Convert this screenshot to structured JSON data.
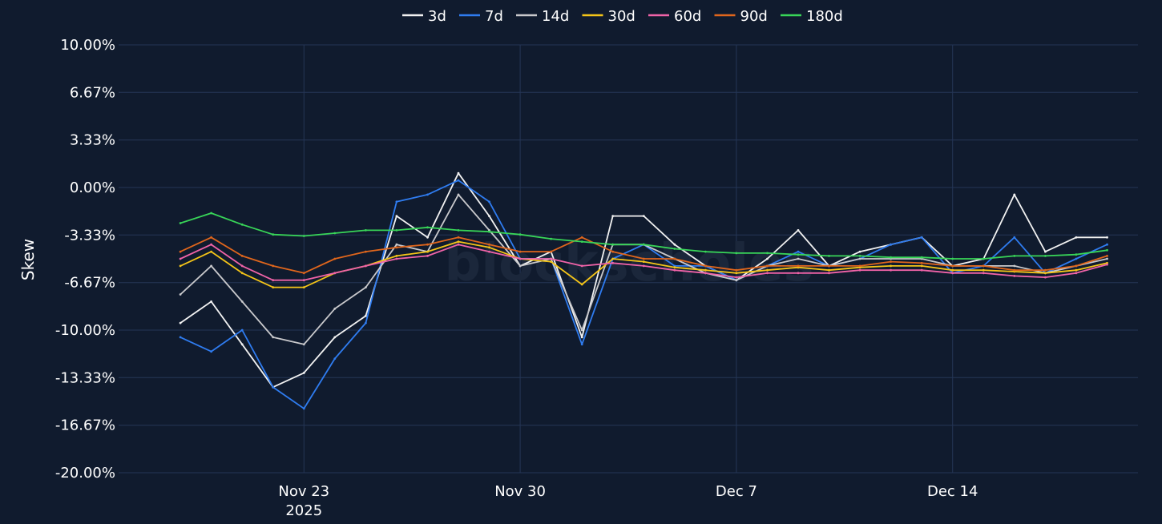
{
  "chart_data": {
    "type": "line",
    "ylabel": "Skew",
    "xlabel": "",
    "ylim": [
      -20,
      10
    ],
    "y_tick_labels": [
      "10.00%",
      "6.67%",
      "3.33%",
      "0.00%",
      "-3.33%",
      "-6.67%",
      "-10.00%",
      "-13.33%",
      "-16.67%",
      "-20.00%"
    ],
    "y_ticks": [
      10,
      6.67,
      3.33,
      0,
      -3.33,
      -6.67,
      -10,
      -13.33,
      -16.67,
      -20
    ],
    "xlim": [
      "2025-11-17",
      "2025-12-20"
    ],
    "x_ticks": [
      {
        "date": "2025-11-23",
        "label": "Nov 23",
        "sublabel": "2025"
      },
      {
        "date": "2025-11-30",
        "label": "Nov 30",
        "sublabel": ""
      },
      {
        "date": "2025-12-07",
        "label": "Dec 7",
        "sublabel": ""
      },
      {
        "date": "2025-12-14",
        "label": "Dec 14",
        "sublabel": ""
      }
    ],
    "grid": true,
    "legend_position": "top-center",
    "watermark": "blockscholes",
    "x": [
      "2025-11-19",
      "2025-11-20",
      "2025-11-21",
      "2025-11-22",
      "2025-11-23",
      "2025-11-24",
      "2025-11-25",
      "2025-11-26",
      "2025-11-27",
      "2025-11-28",
      "2025-11-29",
      "2025-11-30",
      "2025-12-01",
      "2025-12-02",
      "2025-12-03",
      "2025-12-04",
      "2025-12-05",
      "2025-12-06",
      "2025-12-07",
      "2025-12-08",
      "2025-12-09",
      "2025-12-10",
      "2025-12-11",
      "2025-12-12",
      "2025-12-13",
      "2025-12-14",
      "2025-12-15",
      "2025-12-16",
      "2025-12-17",
      "2025-12-18",
      "2025-12-19"
    ],
    "series": [
      {
        "name": "3d",
        "color": "#f2f2f2",
        "values": [
          -9.5,
          -8.0,
          -11.0,
          -14.0,
          -13.0,
          -10.5,
          -9.0,
          -2.0,
          -3.5,
          1.0,
          -2.0,
          -5.5,
          -4.5,
          -10.5,
          -2.0,
          -2.0,
          -4.0,
          -5.5,
          -6.5,
          -5.0,
          -3.0,
          -5.5,
          -4.5,
          -4.0,
          -3.5,
          -5.5,
          -5.0,
          -0.5,
          -4.5,
          -3.5,
          -3.5
        ]
      },
      {
        "name": "7d",
        "color": "#2f7cf0",
        "values": [
          -10.5,
          -11.5,
          -10.0,
          -14.0,
          -15.5,
          -12.0,
          -9.5,
          -1.0,
          -0.5,
          0.5,
          -1.0,
          -5.0,
          -5.0,
          -11.0,
          -5.0,
          -4.0,
          -5.5,
          -5.5,
          -6.5,
          -5.5,
          -4.5,
          -5.5,
          -5.0,
          -4.0,
          -3.5,
          -6.0,
          -5.5,
          -3.5,
          -6.0,
          -5.0,
          -4.0
        ]
      },
      {
        "name": "14d",
        "color": "#c9c9cc",
        "values": [
          -7.5,
          -5.5,
          -8.0,
          -10.5,
          -11.0,
          -8.5,
          -7.0,
          -4.0,
          -4.5,
          -0.5,
          -3.0,
          -5.5,
          -5.0,
          -10.0,
          -4.0,
          -4.0,
          -5.0,
          -6.0,
          -6.5,
          -5.5,
          -5.0,
          -5.5,
          -5.0,
          -5.0,
          -5.0,
          -5.5,
          -5.5,
          -5.5,
          -6.0,
          -5.5,
          -5.0
        ]
      },
      {
        "name": "30d",
        "color": "#f5c518",
        "values": [
          -5.5,
          -4.5,
          -6.0,
          -7.0,
          -7.0,
          -6.0,
          -5.5,
          -4.8,
          -4.5,
          -3.8,
          -4.2,
          -5.0,
          -5.2,
          -6.8,
          -5.0,
          -5.2,
          -5.6,
          -5.8,
          -6.0,
          -5.8,
          -5.6,
          -5.8,
          -5.6,
          -5.5,
          -5.5,
          -5.8,
          -5.8,
          -5.9,
          -6.0,
          -5.8,
          -5.3
        ]
      },
      {
        "name": "60d",
        "color": "#f063a8",
        "values": [
          -5.0,
          -4.0,
          -5.5,
          -6.5,
          -6.5,
          -6.0,
          -5.5,
          -5.0,
          -4.8,
          -4.0,
          -4.5,
          -5.0,
          -5.0,
          -5.5,
          -5.3,
          -5.5,
          -5.8,
          -6.0,
          -6.3,
          -6.0,
          -6.0,
          -6.0,
          -5.8,
          -5.8,
          -5.8,
          -6.0,
          -6.0,
          -6.2,
          -6.3,
          -6.0,
          -5.4
        ]
      },
      {
        "name": "90d",
        "color": "#e0661c",
        "values": [
          -4.5,
          -3.5,
          -4.8,
          -5.5,
          -6.0,
          -5.0,
          -4.5,
          -4.2,
          -4.0,
          -3.5,
          -4.0,
          -4.5,
          -4.5,
          -3.5,
          -4.5,
          -5.0,
          -5.0,
          -5.5,
          -5.8,
          -5.5,
          -5.5,
          -5.5,
          -5.5,
          -5.2,
          -5.3,
          -5.5,
          -5.5,
          -5.8,
          -5.8,
          -5.5,
          -4.8
        ]
      },
      {
        "name": "180d",
        "color": "#38d558",
        "values": [
          -2.5,
          -1.8,
          -2.6,
          -3.3,
          -3.4,
          -3.2,
          -3.0,
          -3.0,
          -2.8,
          -3.0,
          -3.1,
          -3.3,
          -3.6,
          -3.8,
          -4.0,
          -4.0,
          -4.3,
          -4.5,
          -4.6,
          -4.6,
          -4.7,
          -4.8,
          -4.8,
          -4.9,
          -4.9,
          -5.0,
          -5.0,
          -4.8,
          -4.8,
          -4.7,
          -4.4
        ]
      }
    ]
  }
}
